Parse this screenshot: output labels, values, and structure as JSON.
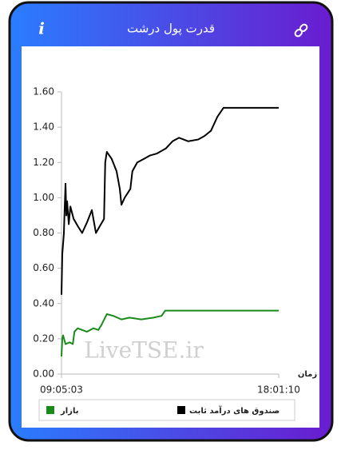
{
  "header": {
    "info_label": "i"
  },
  "chart_data": {
    "type": "line",
    "title": "قدرت پول درشت",
    "x_label": "زمان",
    "watermark": "LiveTSE.ir",
    "xlim": [
      "09:05:03",
      "18:01:10"
    ],
    "xticks": [
      "09:05:03",
      "18:01:10"
    ],
    "ylim": [
      0,
      1.6
    ],
    "yticks": [
      {
        "value": 0,
        "label": "0.00"
      },
      {
        "value": 0.2,
        "label": "0.20"
      },
      {
        "value": 0.4,
        "label": "0.40"
      },
      {
        "value": 0.6,
        "label": "0.60"
      },
      {
        "value": 0.8,
        "label": "0.80"
      },
      {
        "value": 1.0,
        "label": "1.00"
      },
      {
        "value": 1.2,
        "label": "1.20"
      },
      {
        "value": 1.4,
        "label": "1.40"
      },
      {
        "value": 1.6,
        "label": "1.60"
      }
    ],
    "grid": false,
    "series": [
      {
        "name": "صندوق های درآمد ثابت",
        "color": "#000000",
        "x": [
          "09:05:03",
          "09:07:00",
          "09:11:00",
          "09:13:00",
          "09:15:00",
          "09:17:00",
          "09:19:00",
          "09:23:00",
          "09:27:00",
          "09:35:00",
          "09:45:00",
          "09:56:00",
          "10:08:00",
          "10:20:00",
          "10:30:00",
          "10:40:00",
          "10:50:00",
          "10:53:00",
          "10:57:00",
          "11:09:00",
          "11:21:00",
          "11:29:00",
          "11:33:00",
          "11:41:00",
          "11:55:00",
          "12:00:00",
          "12:12:00",
          "12:28:00",
          "12:44:00",
          "13:00:00",
          "13:23:00",
          "13:39:00",
          "13:55:00",
          "14:18:00",
          "14:42:00",
          "14:58:00",
          "15:14:00",
          "15:30:00",
          "15:45:00",
          "18:01:10"
        ],
        "values": [
          0.45,
          0.68,
          0.8,
          0.95,
          1.08,
          0.9,
          0.98,
          0.85,
          0.95,
          0.88,
          0.84,
          0.8,
          0.86,
          0.93,
          0.8,
          0.84,
          0.88,
          1.2,
          1.26,
          1.22,
          1.15,
          1.05,
          0.96,
          1.0,
          1.05,
          1.15,
          1.2,
          1.22,
          1.24,
          1.25,
          1.28,
          1.32,
          1.34,
          1.32,
          1.33,
          1.35,
          1.38,
          1.46,
          1.51,
          1.51
        ]
      },
      {
        "name": "بازار",
        "color": "#1a8a1a",
        "x": [
          "09:05:03",
          "09:07:00",
          "09:09:00",
          "09:15:00",
          "09:25:00",
          "09:33:00",
          "09:37:00",
          "09:45:00",
          "09:56:00",
          "10:08:00",
          "10:24:00",
          "10:36:00",
          "10:44:00",
          "10:57:00",
          "11:13:00",
          "11:33:00",
          "11:53:00",
          "12:22:00",
          "12:52:00",
          "13:12:00",
          "13:21:00",
          "18:01:10"
        ],
        "values": [
          0.1,
          0.2,
          0.22,
          0.17,
          0.18,
          0.17,
          0.24,
          0.26,
          0.25,
          0.24,
          0.26,
          0.25,
          0.28,
          0.34,
          0.33,
          0.31,
          0.32,
          0.31,
          0.32,
          0.33,
          0.36,
          0.36
        ]
      }
    ]
  }
}
